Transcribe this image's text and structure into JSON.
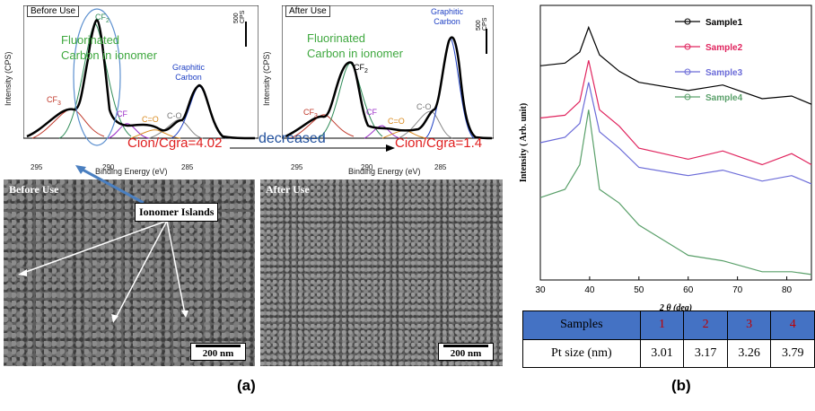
{
  "xps_before": {
    "title": "Before Use",
    "ylabel": "Intensity (CPS)",
    "xlabel": "Binding Energy (eV)",
    "ticks": [
      "295",
      "290",
      "285"
    ],
    "scale_label": "500 CPS",
    "note_line1": "Fluorinated",
    "note_line2": "Carbon in ionomer",
    "peak_cf3": "CF",
    "peak_cf3_sub": "3",
    "peak_cf2": "CF",
    "peak_cf2_sub": "2",
    "peak_cf": "CF",
    "peak_co1": "C=O",
    "peak_co2": "C-O",
    "graphitic_line1": "Graphitic",
    "graphitic_line2": "Carbon",
    "ratio": "Cion/Cgra=4.02"
  },
  "xps_after": {
    "title": "After Use",
    "ylabel": "Intensity (CPS)",
    "xlabel": "Binding Energy (eV)",
    "ticks": [
      "295",
      "290",
      "285"
    ],
    "scale_label": "500 CPS",
    "note_line1": "Fluorinated",
    "note_line2": "Carbon in ionomer",
    "peak_cf3": "CF",
    "peak_cf3_sub": "3",
    "peak_cf2": "CF",
    "peak_cf2_sub": "2",
    "peak_cf": "CF",
    "peak_co1": "C=O",
    "peak_co2": "C-O",
    "graphitic_line1": "Graphitic",
    "graphitic_line2": "Carbon",
    "ratio": "Cion/Cgra=1.4"
  },
  "decreased": "decreased",
  "sem_before": {
    "label": "Before Use",
    "scale": "200 nm",
    "callout": "Ionomer Islands"
  },
  "sem_after": {
    "label": "After Use",
    "scale": "200 nm"
  },
  "panel_a": "(a)",
  "panel_b": "(b)",
  "chart_data": {
    "type": "line",
    "xlabel": "2 θ (deg)",
    "ylabel": "Intensity ( Arb. unit)",
    "xlim": [
      30,
      85
    ],
    "x_ticks": [
      "30",
      "40",
      "50",
      "60",
      "70",
      "80"
    ],
    "series": [
      {
        "name": "Sample1",
        "color": "#000000",
        "x": [
          30,
          35,
          38,
          39.8,
          42,
          46,
          50,
          60,
          67,
          75,
          81,
          85
        ],
        "y": [
          0.78,
          0.79,
          0.83,
          0.92,
          0.82,
          0.76,
          0.72,
          0.69,
          0.71,
          0.66,
          0.67,
          0.64
        ]
      },
      {
        "name": "Sample2",
        "color": "#e0245e",
        "x": [
          30,
          35,
          38,
          39.8,
          42,
          46,
          50,
          60,
          67,
          75,
          81,
          85
        ],
        "y": [
          0.59,
          0.6,
          0.65,
          0.8,
          0.62,
          0.56,
          0.48,
          0.44,
          0.47,
          0.42,
          0.46,
          0.42
        ]
      },
      {
        "name": "Sample3",
        "color": "#6b6bd8",
        "x": [
          30,
          35,
          38,
          39.8,
          42,
          46,
          50,
          60,
          67,
          75,
          81,
          85
        ],
        "y": [
          0.5,
          0.52,
          0.57,
          0.72,
          0.54,
          0.48,
          0.41,
          0.38,
          0.4,
          0.36,
          0.38,
          0.35
        ]
      },
      {
        "name": "Sample4",
        "color": "#5aa06a",
        "x": [
          30,
          35,
          38,
          39.8,
          42,
          46,
          50,
          60,
          67,
          75,
          81,
          85
        ],
        "y": [
          0.3,
          0.33,
          0.42,
          0.62,
          0.33,
          0.28,
          0.2,
          0.09,
          0.07,
          0.03,
          0.03,
          0.02
        ]
      }
    ]
  },
  "table": {
    "header": [
      "Samples",
      "1",
      "2",
      "3",
      "4"
    ],
    "row": [
      "Pt size (nm)",
      "3.01",
      "3.17",
      "3.26",
      "3.79"
    ]
  }
}
